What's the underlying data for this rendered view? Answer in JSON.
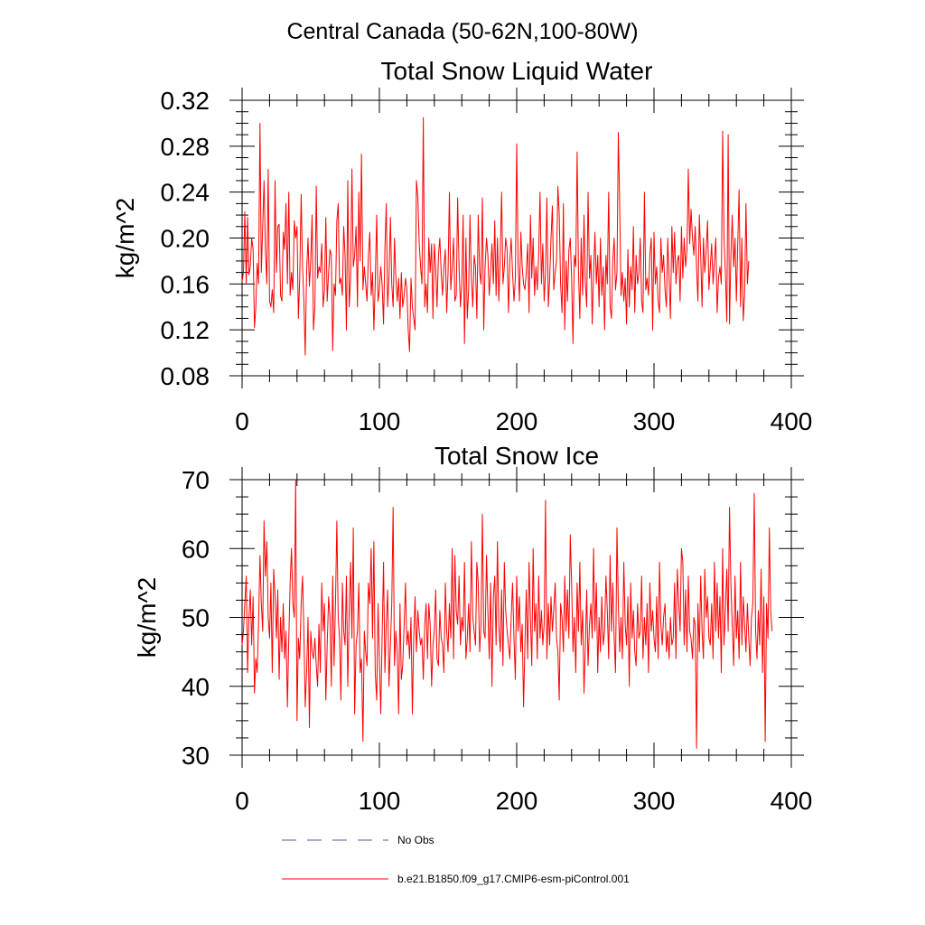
{
  "page_title": "Central Canada (50-62N,100-80W)",
  "colors": {
    "model": "#ff0000",
    "obs": "#5a5a8c",
    "axis": "#000000"
  },
  "legend": {
    "obs_label": "No Obs",
    "model_label": "b.e21.B1850.f09_g17.CMIP6-esm-piControl.001"
  },
  "chart_data": [
    {
      "type": "line",
      "title": "Total Snow Liquid Water",
      "ylabel": "kg/m^2",
      "xlim": [
        0,
        400
      ],
      "ylim": [
        0.08,
        0.32
      ],
      "xticks": [
        0,
        100,
        200,
        300,
        400
      ],
      "yticks": [
        0.08,
        0.12,
        0.16,
        0.2,
        0.24,
        0.28,
        0.32
      ],
      "ytick_labels": [
        "0.08",
        "0.12",
        "0.16",
        "0.20",
        "0.24",
        "0.28",
        "0.32"
      ],
      "series": [
        {
          "name": "b.e21.B1850.f09_g17.CMIP6-esm-piControl.001",
          "x_start": 0,
          "x_step": 1,
          "values": [
            0.162,
            0.17,
            0.223,
            0.16,
            0.218,
            0.168,
            0.175,
            0.2,
            0.19,
            0.122,
            0.14,
            0.178,
            0.16,
            0.3,
            0.17,
            0.21,
            0.25,
            0.19,
            0.16,
            0.26,
            0.145,
            0.14,
            0.155,
            0.135,
            0.25,
            0.17,
            0.21,
            0.212,
            0.15,
            0.145,
            0.205,
            0.19,
            0.23,
            0.16,
            0.24,
            0.15,
            0.17,
            0.155,
            0.215,
            0.2,
            0.21,
            0.13,
            0.165,
            0.238,
            0.175,
            0.145,
            0.098,
            0.17,
            0.2,
            0.158,
            0.18,
            0.22,
            0.12,
            0.14,
            0.245,
            0.165,
            0.175,
            0.17,
            0.195,
            0.14,
            0.155,
            0.218,
            0.145,
            0.17,
            0.19,
            0.185,
            0.102,
            0.16,
            0.15,
            0.215,
            0.23,
            0.16,
            0.165,
            0.15,
            0.21,
            0.185,
            0.12,
            0.25,
            0.14,
            0.165,
            0.26,
            0.175,
            0.185,
            0.21,
            0.14,
            0.24,
            0.18,
            0.273,
            0.155,
            0.175,
            0.16,
            0.145,
            0.185,
            0.205,
            0.15,
            0.17,
            0.12,
            0.162,
            0.22,
            0.145,
            0.155,
            0.175,
            0.16,
            0.125,
            0.19,
            0.23,
            0.14,
            0.165,
            0.218,
            0.16,
            0.14,
            0.2,
            0.165,
            0.145,
            0.165,
            0.13,
            0.17,
            0.14,
            0.15,
            0.165,
            0.155,
            0.12,
            0.101,
            0.165,
            0.14,
            0.13,
            0.12,
            0.25,
            0.235,
            0.195,
            0.175,
            0.16,
            0.305,
            0.14,
            0.16,
            0.135,
            0.2,
            0.17,
            0.195,
            0.13,
            0.195,
            0.175,
            0.14,
            0.185,
            0.2,
            0.17,
            0.15,
            0.175,
            0.19,
            0.135,
            0.17,
            0.24,
            0.155,
            0.175,
            0.2,
            0.145,
            0.15,
            0.235,
            0.175,
            0.14,
            0.16,
            0.22,
            0.108,
            0.2,
            0.13,
            0.155,
            0.22,
            0.165,
            0.14,
            0.185,
            0.175,
            0.13,
            0.22,
            0.17,
            0.16,
            0.235,
            0.12,
            0.175,
            0.2,
            0.185,
            0.15,
            0.17,
            0.195,
            0.16,
            0.215,
            0.15,
            0.2,
            0.145,
            0.185,
            0.24,
            0.16,
            0.175,
            0.2,
            0.19,
            0.135,
            0.18,
            0.2,
            0.17,
            0.145,
            0.165,
            0.282,
            0.18,
            0.145,
            0.205,
            0.175,
            0.16,
            0.155,
            0.17,
            0.195,
            0.135,
            0.22,
            0.165,
            0.2,
            0.15,
            0.175,
            0.155,
            0.185,
            0.24,
            0.16,
            0.195,
            0.145,
            0.17,
            0.235,
            0.14,
            0.165,
            0.2,
            0.228,
            0.155,
            0.17,
            0.18,
            0.245,
            0.22,
            0.16,
            0.135,
            0.23,
            0.12,
            0.18,
            0.145,
            0.19,
            0.2,
            0.165,
            0.108,
            0.185,
            0.175,
            0.275,
            0.17,
            0.13,
            0.2,
            0.15,
            0.22,
            0.16,
            0.14,
            0.24,
            0.165,
            0.185,
            0.125,
            0.17,
            0.205,
            0.16,
            0.185,
            0.14,
            0.2,
            0.15,
            0.175,
            0.12,
            0.185,
            0.16,
            0.24,
            0.14,
            0.13,
            0.18,
            0.2,
            0.155,
            0.17,
            0.292,
            0.23,
            0.15,
            0.17,
            0.145,
            0.165,
            0.125,
            0.19,
            0.14,
            0.175,
            0.155,
            0.21,
            0.135,
            0.185,
            0.16,
            0.17,
            0.2,
            0.145,
            0.135,
            0.24,
            0.155,
            0.165,
            0.15,
            0.185,
            0.2,
            0.12,
            0.205,
            0.16,
            0.175,
            0.145,
            0.135,
            0.2,
            0.17,
            0.185,
            0.155,
            0.14,
            0.2,
            0.165,
            0.13,
            0.21,
            0.17,
            0.205,
            0.16,
            0.18,
            0.185,
            0.145,
            0.21,
            0.165,
            0.2,
            0.175,
            0.19,
            0.26,
            0.195,
            0.225,
            0.2,
            0.185,
            0.21,
            0.175,
            0.145,
            0.22,
            0.185,
            0.14,
            0.2,
            0.17,
            0.19,
            0.215,
            0.155,
            0.175,
            0.195,
            0.16,
            0.18,
            0.2,
            0.135,
            0.165,
            0.175,
            0.16,
            0.293,
            0.2,
            0.17,
            0.127,
            0.29,
            0.125,
            0.185,
            0.22,
            0.175,
            0.2,
            0.145,
            0.195,
            0.242,
            0.14,
            0.2,
            0.128,
            0.15,
            0.23,
            0.16,
            0.18
          ]
        }
      ]
    },
    {
      "type": "line",
      "title": "Total Snow Ice",
      "ylabel": "kg/m^2",
      "xlim": [
        0,
        400
      ],
      "ylim": [
        30,
        70
      ],
      "xticks": [
        0,
        100,
        200,
        300,
        400
      ],
      "yticks": [
        30,
        40,
        50,
        60,
        70
      ],
      "ytick_labels": [
        "30",
        "40",
        "50",
        "60",
        "70"
      ],
      "series": [
        {
          "name": "b.e21.B1850.f09_g17.CMIP6-esm-piControl.001",
          "x_start": 0,
          "x_step": 1,
          "values": [
            46,
            48,
            52,
            56,
            42,
            50,
            54,
            46,
            53,
            39,
            44,
            42,
            49,
            59,
            52,
            48,
            64,
            56,
            61,
            50,
            47,
            55,
            42,
            57,
            53,
            47,
            54,
            41,
            50,
            45,
            52,
            44,
            48,
            37,
            47,
            55,
            60,
            52,
            50,
            70,
            35,
            47,
            44,
            52,
            56,
            48,
            37,
            42,
            50,
            34,
            48,
            45,
            44,
            47,
            43,
            40,
            49,
            42,
            55,
            48,
            52,
            38,
            46,
            53,
            50,
            40,
            56,
            43,
            52,
            64,
            50,
            47,
            38,
            55,
            48,
            46,
            56,
            40,
            51,
            58,
            47,
            63,
            36,
            46,
            48,
            55,
            42,
            44,
            32,
            48,
            45,
            43,
            55,
            52,
            60,
            47,
            61,
            42,
            38,
            52,
            44,
            36,
            47,
            58,
            42,
            49,
            54,
            40,
            46,
            52,
            66,
            43,
            48,
            45,
            36,
            52,
            41,
            43,
            49,
            55,
            46,
            48,
            44,
            50,
            36,
            47,
            53,
            45,
            51,
            48,
            46,
            47,
            41,
            49,
            52,
            44,
            52,
            49,
            40,
            46,
            48,
            54,
            44,
            43,
            51,
            47,
            46,
            42,
            55,
            48,
            45,
            52,
            47,
            60,
            44,
            59,
            51,
            49,
            56,
            46,
            50,
            48,
            58,
            44,
            47,
            52,
            45,
            61,
            50,
            48,
            46,
            58,
            55,
            45,
            49,
            65,
            48,
            47,
            59,
            51,
            44,
            55,
            40,
            53,
            56,
            46,
            61,
            49,
            45,
            54,
            43,
            58,
            51,
            48,
            46,
            44,
            50,
            55,
            47,
            41,
            56,
            48,
            53,
            45,
            49,
            37,
            46,
            54,
            44,
            58,
            50,
            43,
            60,
            48,
            52,
            44,
            56,
            47,
            51,
            46,
            49,
            67,
            44,
            52,
            46,
            53,
            48,
            51,
            55,
            47,
            45,
            38,
            52,
            50,
            45,
            56,
            48,
            54,
            47,
            62,
            55,
            45,
            50,
            42,
            55,
            48,
            58,
            46,
            51,
            39,
            46,
            54,
            43,
            49,
            52,
            47,
            60,
            48,
            55,
            42,
            50,
            45,
            53,
            46,
            48,
            56,
            51,
            44,
            59,
            48,
            55,
            47,
            42,
            63,
            52,
            45,
            50,
            44,
            58,
            49,
            46,
            53,
            40,
            55,
            47,
            51,
            45,
            43,
            52,
            47,
            48,
            56,
            44,
            50,
            46,
            52,
            42,
            55,
            48,
            51,
            47,
            45,
            53,
            44,
            58,
            49,
            46,
            50,
            52,
            45,
            48,
            44,
            50,
            46,
            47,
            55,
            44,
            57,
            52,
            48,
            60,
            58,
            46,
            54,
            45,
            56,
            48,
            47,
            44,
            50,
            49,
            31,
            52,
            45,
            56,
            48,
            44,
            57,
            50,
            53,
            47,
            46,
            52,
            44,
            58,
            48,
            55,
            47,
            53,
            42,
            60,
            46,
            51,
            57,
            48,
            66,
            55,
            49,
            43,
            56,
            47,
            51,
            44,
            58,
            46,
            53,
            49,
            45,
            52,
            47,
            43,
            50,
            52,
            68,
            48,
            44,
            51,
            46,
            57,
            42,
            53,
            32,
            52,
            47,
            63,
            51,
            48
          ]
        }
      ]
    }
  ]
}
